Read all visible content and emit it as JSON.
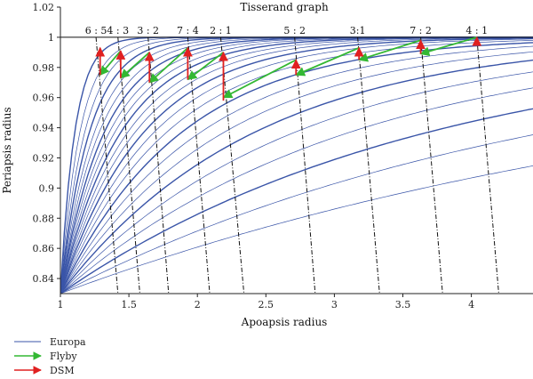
{
  "chart_data": {
    "type": "line",
    "title": "Tisserand graph",
    "xlabel": "Apoapsis radius",
    "ylabel": "Periapsis radius",
    "xlim": [
      1,
      4.45
    ],
    "ylim": [
      0.83,
      1.02
    ],
    "xticks": [
      1,
      1.5,
      2,
      2.5,
      3,
      3.5,
      4
    ],
    "yticks": [
      0.84,
      0.86,
      0.88,
      0.9,
      0.92,
      0.94,
      0.96,
      0.98,
      1,
      1.02
    ],
    "grid": false,
    "legend_position": "bottom-left",
    "colors": {
      "europa": "#3a55a8",
      "flyby": "#33b833",
      "dsm": "#e02020",
      "resonance": "#111111"
    },
    "contours": [
      {
        "k": 0.2
      },
      {
        "k": 0.28
      },
      {
        "k": 0.37
      },
      {
        "k": 0.47
      },
      {
        "k": 0.58
      },
      {
        "k": 0.7
      },
      {
        "k": 0.83
      },
      {
        "k": 0.97
      },
      {
        "k": 1.12
      },
      {
        "k": 1.28
      },
      {
        "k": 1.45
      },
      {
        "k": 1.63
      },
      {
        "k": 1.82
      },
      {
        "k": 2.02
      },
      {
        "k": 2.25
      },
      {
        "k": 2.5
      },
      {
        "k": 2.78
      },
      {
        "k": 3.1
      },
      {
        "k": 3.5
      },
      {
        "k": 4.0
      },
      {
        "k": 4.7
      },
      {
        "k": 5.6
      },
      {
        "k": 7.0
      },
      {
        "k": 9.5
      }
    ],
    "resonances": [
      {
        "label": "6 : 5",
        "x_top": 1.26,
        "x_bottom": 1.42
      },
      {
        "label": "4 : 3",
        "x_top": 1.42,
        "x_bottom": 1.58
      },
      {
        "label": "3 : 2",
        "x_top": 1.64,
        "x_bottom": 1.79
      },
      {
        "label": "7 : 4",
        "x_top": 1.93,
        "x_bottom": 2.09
      },
      {
        "label": "2 : 1",
        "x_top": 2.17,
        "x_bottom": 2.34
      },
      {
        "label": "5 : 2",
        "x_top": 2.71,
        "x_bottom": 2.86
      },
      {
        "label": "3:1",
        "x_top": 3.17,
        "x_bottom": 3.33
      },
      {
        "label": "7 : 2",
        "x_top": 3.63,
        "x_bottom": 3.79
      },
      {
        "label": "4 : 1",
        "x_top": 4.04,
        "x_bottom": 4.2
      }
    ],
    "dsm": [
      {
        "x": 1.29,
        "y0": 0.975,
        "y1": 0.993
      },
      {
        "x": 1.44,
        "y0": 0.973,
        "y1": 0.991
      },
      {
        "x": 1.65,
        "y0": 0.97,
        "y1": 0.99
      },
      {
        "x": 1.93,
        "y0": 0.972,
        "y1": 0.993
      },
      {
        "x": 2.19,
        "y0": 0.958,
        "y1": 0.99
      },
      {
        "x": 2.72,
        "y0": 0.975,
        "y1": 0.985
      },
      {
        "x": 3.18,
        "y0": 0.985,
        "y1": 0.993
      },
      {
        "x": 3.63,
        "y0": 0.989,
        "y1": 0.998
      },
      {
        "x": 4.04,
        "y0": 0.997,
        "y1": 1.0
      }
    ],
    "flyby": [
      {
        "x0": 1.44,
        "y0": 0.991,
        "x1": 1.29,
        "y1": 0.975
      },
      {
        "x0": 1.65,
        "y0": 0.99,
        "x1": 1.44,
        "y1": 0.973
      },
      {
        "x0": 1.93,
        "y0": 0.993,
        "x1": 1.65,
        "y1": 0.97
      },
      {
        "x0": 2.19,
        "y0": 0.99,
        "x1": 1.93,
        "y1": 0.972
      },
      {
        "x0": 2.72,
        "y0": 0.985,
        "x1": 2.19,
        "y1": 0.96
      },
      {
        "x0": 3.18,
        "y0": 0.993,
        "x1": 2.72,
        "y1": 0.975
      },
      {
        "x0": 3.63,
        "y0": 0.998,
        "x1": 3.18,
        "y1": 0.985
      },
      {
        "x0": 4.04,
        "y0": 1.0,
        "x1": 3.63,
        "y1": 0.989
      }
    ],
    "legend": [
      {
        "label": "Europa",
        "kind": "line",
        "color": "#3a55a8"
      },
      {
        "label": "Flyby",
        "kind": "arrow",
        "color": "#33b833"
      },
      {
        "label": "DSM",
        "kind": "arrow",
        "color": "#e02020"
      }
    ]
  }
}
